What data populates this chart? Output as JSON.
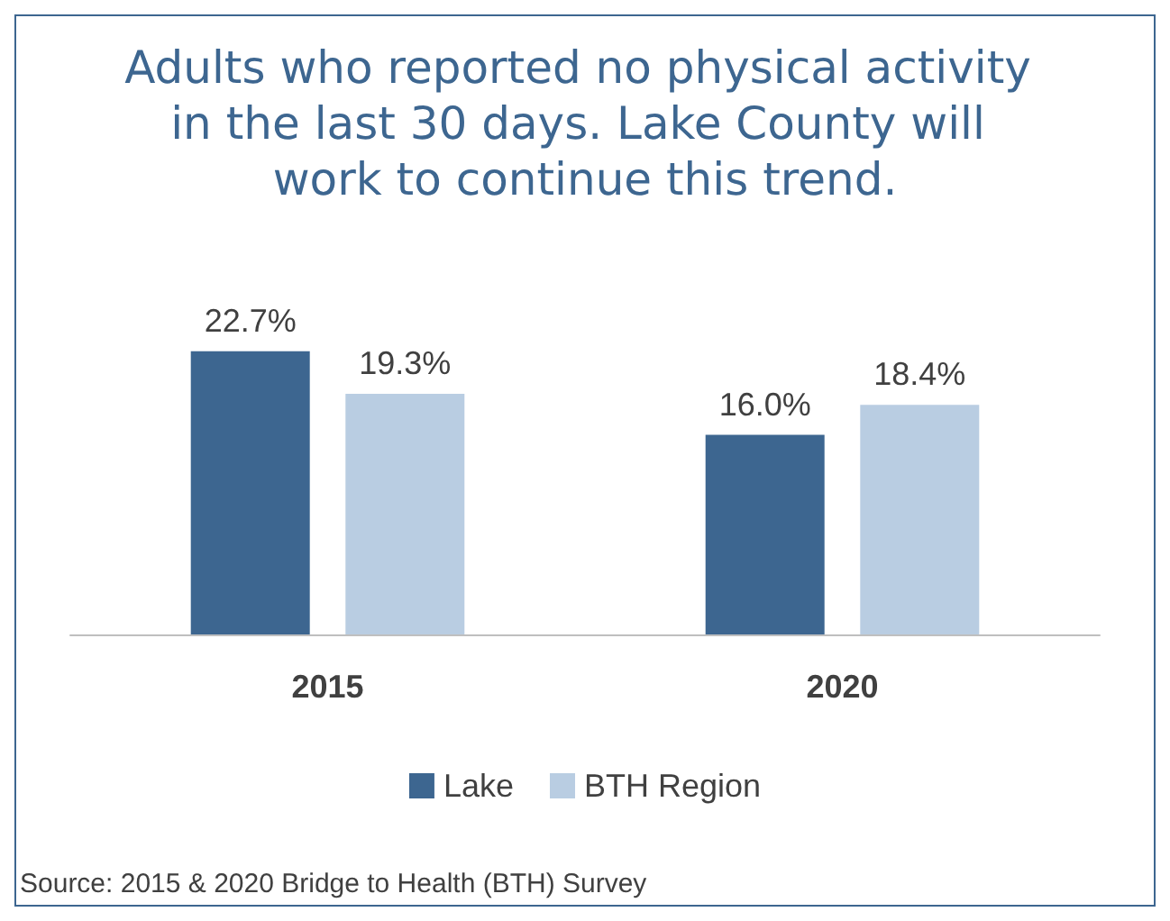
{
  "chart_data": {
    "type": "bar",
    "title": "Adults who reported no physical activity in the last 30 days. Lake County will work to continue this trend.",
    "categories": [
      "2015",
      "2020"
    ],
    "series": [
      {
        "name": "Lake",
        "color": "#3d6690",
        "values": [
          22.7,
          16.0
        ],
        "value_labels": [
          "22.7%",
          "16.0%"
        ]
      },
      {
        "name": "BTH Region",
        "color": "#b9cde2",
        "values": [
          19.3,
          18.4
        ],
        "value_labels": [
          "19.3%",
          "18.4%"
        ]
      }
    ],
    "legend": "bottom",
    "annotations": [
      "Source: 2015 & 2020 Bridge to Health (BTH) Survey"
    ]
  }
}
